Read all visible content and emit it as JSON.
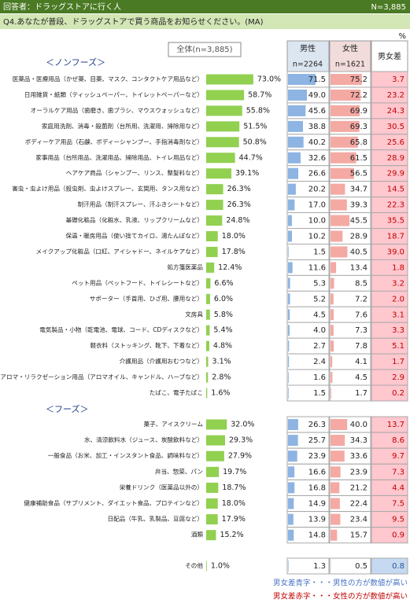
{
  "header": {
    "respondents": "回答者：ドラッグストアに行く人",
    "n": "N=3,885"
  },
  "question": "Q4.あなたが普段、ドラッグストアで買う商品をお知らせください。(MA)",
  "unit": "%",
  "columns": {
    "total": "全体(n=3,885)",
    "male": "男性",
    "male_n": "n=2264",
    "female": "女性",
    "female_n": "n=1621",
    "diff": "男女差"
  },
  "sections": [
    {
      "title": "＜ノンフーズ＞",
      "rows": [
        {
          "label": "医薬品・医療用品（かぜ薬、目薬、マスク、コンタクトケア用品など）",
          "values": [
            73.0,
            71.5,
            75.2,
            3.7
          ],
          "value_labels": [
            "73.0%",
            "71.5",
            "75.2",
            "3.7"
          ]
        },
        {
          "label": "日用雑貨・紙類（ティッシュペーパー、トイレットペーパーなど）",
          "values": [
            58.7,
            49.0,
            72.2,
            23.2
          ],
          "value_labels": [
            "58.7%",
            "49.0",
            "72.2",
            "23.2"
          ]
        },
        {
          "label": "オーラルケア用品（歯磨き、歯ブラシ、マウスウォッシュなど）",
          "values": [
            55.8,
            45.6,
            69.9,
            24.3
          ],
          "value_labels": [
            "55.8%",
            "45.6",
            "69.9",
            "24.3"
          ]
        },
        {
          "label": "家庭用洗剤、消毒・殺菌剤（台所用、洗濯用、掃除用など）",
          "values": [
            51.5,
            38.8,
            69.3,
            30.5
          ],
          "value_labels": [
            "51.5%",
            "38.8",
            "69.3",
            "30.5"
          ]
        },
        {
          "label": "ボディーケア用品（石鹸、ボディーシャンプー、手指消毒剤など）",
          "values": [
            50.8,
            40.2,
            65.8,
            25.6
          ],
          "value_labels": [
            "50.8%",
            "40.2",
            "65.8",
            "25.6"
          ]
        },
        {
          "label": "家事用品（台所用品、洗濯用品、掃除用品、トイレ用品など）",
          "values": [
            44.7,
            32.6,
            61.5,
            28.9
          ],
          "value_labels": [
            "44.7%",
            "32.6",
            "61.5",
            "28.9"
          ]
        },
        {
          "label": "ヘアケア商品（シャンプー、リンス、整髪料など）",
          "values": [
            39.1,
            26.6,
            56.5,
            29.9
          ],
          "value_labels": [
            "39.1%",
            "26.6",
            "56.5",
            "29.9"
          ]
        },
        {
          "label": "害虫・虫よけ用品（殺虫剤、虫よけスプレー、玄関用、タンス用など）",
          "values": [
            26.3,
            20.2,
            34.7,
            14.5
          ],
          "value_labels": [
            "26.3%",
            "20.2",
            "34.7",
            "14.5"
          ]
        },
        {
          "label": "制汗用品（制汗スプレー、汗ふきシートなど）",
          "values": [
            26.3,
            17.0,
            39.3,
            22.3
          ],
          "value_labels": [
            "26.3%",
            "17.0",
            "39.3",
            "22.3"
          ]
        },
        {
          "label": "基礎化粧品（化粧水、乳液、リップクリームなど）",
          "values": [
            24.8,
            10.0,
            45.5,
            35.5
          ],
          "value_labels": [
            "24.8%",
            "10.0",
            "45.5",
            "35.5"
          ]
        },
        {
          "label": "保温・暖房用品（使い捨てカイロ、湯たんぽなど）",
          "values": [
            18.0,
            10.2,
            28.9,
            18.7
          ],
          "value_labels": [
            "18.0%",
            "10.2",
            "28.9",
            "18.7"
          ]
        },
        {
          "label": "メイクアップ化粧品（口紅、アイシャドー、ネイルケアなど）",
          "values": [
            17.8,
            1.5,
            40.5,
            39.0
          ],
          "value_labels": [
            "17.8%",
            "1.5",
            "40.5",
            "39.0"
          ]
        },
        {
          "label": "処方箋医薬品",
          "values": [
            12.4,
            11.6,
            13.4,
            1.8
          ],
          "value_labels": [
            "12.4%",
            "11.6",
            "13.4",
            "1.8"
          ]
        },
        {
          "label": "ペット用品（ペットフード、トイレシートなど）",
          "values": [
            6.6,
            5.3,
            8.5,
            3.2
          ],
          "value_labels": [
            "6.6%",
            "5.3",
            "8.5",
            "3.2"
          ]
        },
        {
          "label": "サポーター（手首用、ひざ用、腰用など）",
          "values": [
            6.0,
            5.2,
            7.2,
            2.0
          ],
          "value_labels": [
            "6.0%",
            "5.2",
            "7.2",
            "2.0"
          ]
        },
        {
          "label": "文房具",
          "values": [
            5.8,
            4.5,
            7.6,
            3.1
          ],
          "value_labels": [
            "5.8%",
            "4.5",
            "7.6",
            "3.1"
          ]
        },
        {
          "label": "電気製品・小物（乾電池、電球、コード、CDディスクなど）",
          "values": [
            5.4,
            4.0,
            7.3,
            3.3
          ],
          "value_labels": [
            "5.4%",
            "4.0",
            "7.3",
            "3.3"
          ]
        },
        {
          "label": "軽衣料（ストッキング、靴下、下着など）",
          "values": [
            4.8,
            2.7,
            7.8,
            5.1
          ],
          "value_labels": [
            "4.8%",
            "2.7",
            "7.8",
            "5.1"
          ]
        },
        {
          "label": "介護用品（介護用おむつなど）",
          "values": [
            3.1,
            2.4,
            4.1,
            1.7
          ],
          "value_labels": [
            "3.1%",
            "2.4",
            "4.1",
            "1.7"
          ]
        },
        {
          "label": "アロマ・リラクゼーション用品（アロマオイル、キャンドル、ハーブなど）",
          "values": [
            2.8,
            1.6,
            4.5,
            2.9
          ],
          "value_labels": [
            "2.8%",
            "1.6",
            "4.5",
            "2.9"
          ]
        },
        {
          "label": "たばこ、電子たばこ",
          "values": [
            1.6,
            1.5,
            1.7,
            0.2
          ],
          "value_labels": [
            "1.6%",
            "1.5",
            "1.7",
            "0.2"
          ]
        }
      ]
    },
    {
      "title": "＜フーズ＞",
      "rows": [
        {
          "label": "菓子、アイスクリーム",
          "values": [
            32.0,
            26.3,
            40.0,
            13.7
          ],
          "value_labels": [
            "32.0%",
            "26.3",
            "40.0",
            "13.7"
          ]
        },
        {
          "label": "水、清涼飲料水（ジュース、炭酸飲料など）",
          "values": [
            29.3,
            25.7,
            34.3,
            8.6
          ],
          "value_labels": [
            "29.3%",
            "25.7",
            "34.3",
            "8.6"
          ]
        },
        {
          "label": "一般食品（お米、加工・インスタント食品、調味料など）",
          "values": [
            27.9,
            23.9,
            33.6,
            9.7
          ],
          "value_labels": [
            "27.9%",
            "23.9",
            "33.6",
            "9.7"
          ]
        },
        {
          "label": "弁当、惣菜、パン",
          "values": [
            19.7,
            16.6,
            23.9,
            7.3
          ],
          "value_labels": [
            "19.7%",
            "16.6",
            "23.9",
            "7.3"
          ]
        },
        {
          "label": "栄養ドリンク（医薬品以外の）",
          "values": [
            18.7,
            16.8,
            21.2,
            4.4
          ],
          "value_labels": [
            "18.7%",
            "16.8",
            "21.2",
            "4.4"
          ]
        },
        {
          "label": "健康補助食品（サプリメント、ダイエット食品、プロテインなど）",
          "values": [
            18.0,
            14.9,
            22.4,
            7.5
          ],
          "value_labels": [
            "18.0%",
            "14.9",
            "22.4",
            "7.5"
          ]
        },
        {
          "label": "日配品（牛乳、乳製品、豆腐など）",
          "values": [
            17.9,
            13.9,
            23.4,
            9.5
          ],
          "value_labels": [
            "17.9%",
            "13.9",
            "23.4",
            "9.5"
          ]
        },
        {
          "label": "酒類",
          "values": [
            15.2,
            14.8,
            15.7,
            0.9
          ],
          "value_labels": [
            "15.2%",
            "14.8",
            "15.7",
            "0.9"
          ]
        }
      ]
    }
  ],
  "other": {
    "label": "その他",
    "values": [
      1.0,
      1.3,
      0.5,
      0.8
    ],
    "value_labels": [
      "1.0%",
      "1.3",
      "0.5",
      "0.8"
    ]
  },
  "notes": [
    "男女差青字・・・男性の方が数値が高い",
    "男女差赤字・・・女性の方が数値が高い"
  ]
}
